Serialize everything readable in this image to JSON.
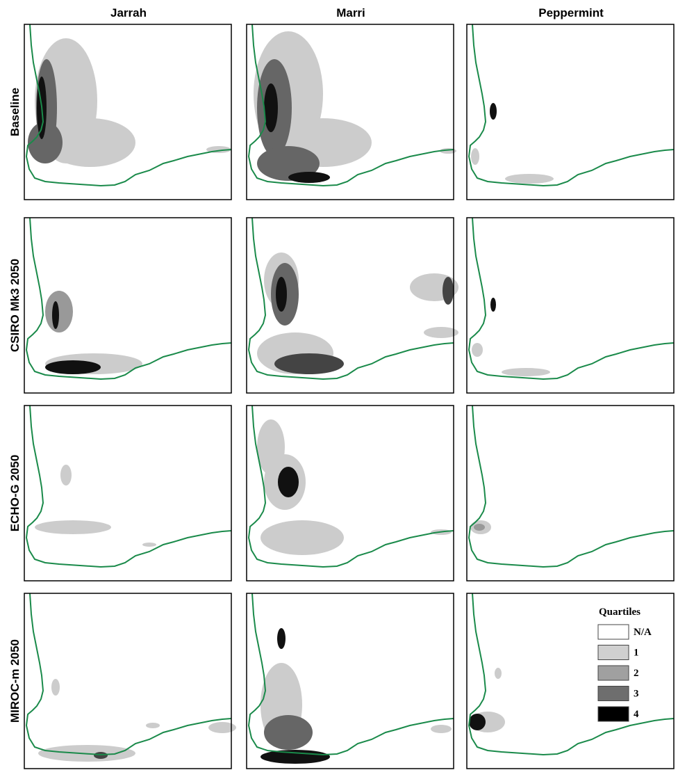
{
  "columns": [
    "Jarrah",
    "Marri",
    "Peppermint"
  ],
  "rows": [
    "Baseline",
    "CSIRO Mk3 2050",
    "ECHO-G 2050",
    "MIROC-m 2050"
  ],
  "legend": {
    "title": "Quartiles",
    "items": [
      "N/A",
      "1",
      "2",
      "3",
      "4"
    ]
  }
}
